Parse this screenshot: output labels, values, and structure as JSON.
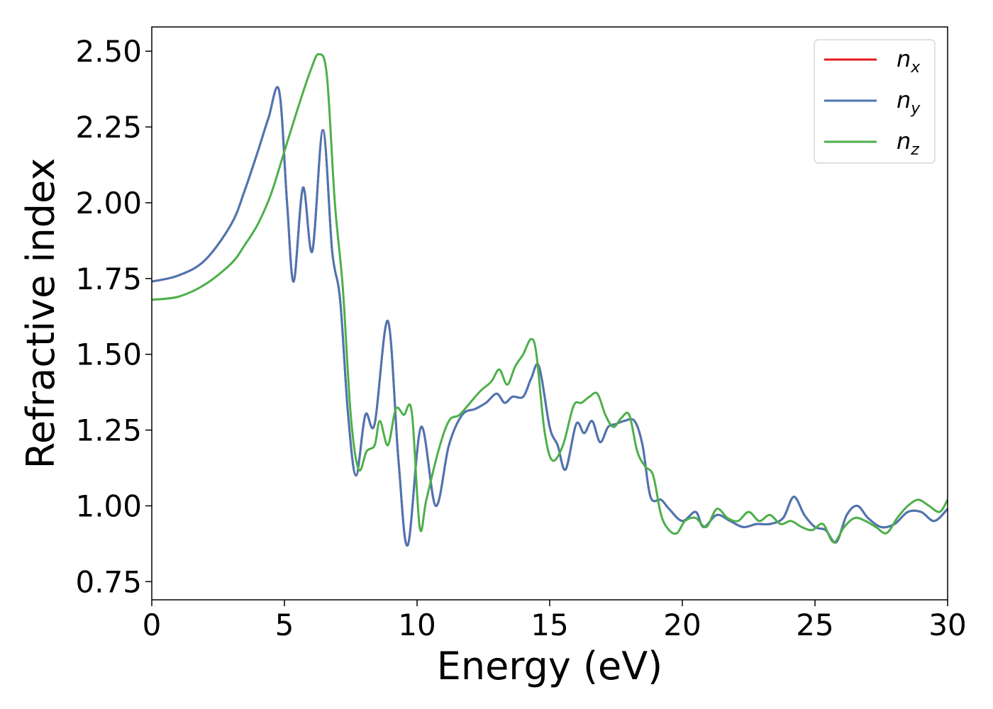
{
  "chart_data": {
    "type": "line",
    "xlabel": "Energy (eV)",
    "ylabel": "Refractive index",
    "xlim": [
      0,
      30
    ],
    "ylim": [
      0.69,
      2.58
    ],
    "xticks": [
      "0",
      "5",
      "10",
      "15",
      "20",
      "25",
      "30"
    ],
    "yticks": [
      "0.75",
      "1.00",
      "1.25",
      "1.50",
      "1.75",
      "2.00",
      "2.25",
      "2.50"
    ],
    "grid": false,
    "legend_position": "top-right",
    "series": [
      {
        "name": "n_x",
        "label_base": "n",
        "label_sub": "x",
        "color": "#e41a1c",
        "x": [
          0,
          1,
          2,
          3,
          3.5,
          4,
          4.4,
          4.8,
          5.1,
          5.35,
          5.7,
          6.05,
          6.45,
          6.8,
          7.1,
          7.4,
          7.7,
          8.05,
          8.4,
          8.9,
          9.3,
          9.65,
          10.15,
          10.7,
          11.2,
          11.7,
          12.2,
          12.6,
          13.0,
          13.3,
          13.6,
          14.0,
          14.3,
          14.6,
          15.0,
          15.3,
          15.6,
          16.0,
          16.3,
          16.6,
          16.9,
          17.2,
          17.5,
          17.8,
          18.2,
          18.5,
          18.8,
          19.2,
          19.5,
          20.0,
          20.5,
          20.8,
          21.3,
          21.8,
          22.3,
          22.8,
          23.3,
          23.8,
          24.2,
          24.6,
          25.0,
          25.4,
          25.8,
          26.2,
          26.6,
          27.0,
          27.5,
          28.0,
          28.5,
          29.0,
          29.5,
          30.0
        ],
        "y": [
          1.74,
          1.76,
          1.81,
          1.93,
          2.04,
          2.17,
          2.28,
          2.37,
          2.0,
          1.74,
          2.05,
          1.84,
          2.24,
          1.84,
          1.68,
          1.3,
          1.1,
          1.3,
          1.27,
          1.61,
          1.15,
          0.87,
          1.26,
          1.0,
          1.2,
          1.3,
          1.32,
          1.34,
          1.37,
          1.34,
          1.36,
          1.36,
          1.42,
          1.46,
          1.26,
          1.2,
          1.12,
          1.27,
          1.24,
          1.28,
          1.21,
          1.26,
          1.27,
          1.28,
          1.28,
          1.2,
          1.03,
          1.02,
          0.99,
          0.95,
          0.98,
          0.93,
          0.97,
          0.95,
          0.93,
          0.94,
          0.94,
          0.96,
          1.03,
          0.97,
          0.93,
          0.92,
          0.88,
          0.97,
          1.0,
          0.96,
          0.93,
          0.94,
          0.98,
          0.98,
          0.95,
          0.99
        ]
      },
      {
        "name": "n_y",
        "label_base": "n",
        "label_sub": "y",
        "color": "#4a76b3",
        "x": [
          0,
          1,
          2,
          3,
          3.5,
          4,
          4.4,
          4.8,
          5.1,
          5.35,
          5.7,
          6.05,
          6.45,
          6.8,
          7.1,
          7.4,
          7.7,
          8.05,
          8.4,
          8.9,
          9.3,
          9.65,
          10.15,
          10.7,
          11.2,
          11.7,
          12.2,
          12.6,
          13.0,
          13.3,
          13.6,
          14.0,
          14.3,
          14.6,
          15.0,
          15.3,
          15.6,
          16.0,
          16.3,
          16.6,
          16.9,
          17.2,
          17.5,
          17.8,
          18.2,
          18.5,
          18.8,
          19.2,
          19.5,
          20.0,
          20.5,
          20.8,
          21.3,
          21.8,
          22.3,
          22.8,
          23.3,
          23.8,
          24.2,
          24.6,
          25.0,
          25.4,
          25.8,
          26.2,
          26.6,
          27.0,
          27.5,
          28.0,
          28.5,
          29.0,
          29.5,
          30.0
        ],
        "y": [
          1.74,
          1.76,
          1.81,
          1.93,
          2.04,
          2.17,
          2.28,
          2.37,
          2.0,
          1.74,
          2.05,
          1.84,
          2.24,
          1.84,
          1.68,
          1.3,
          1.1,
          1.3,
          1.27,
          1.61,
          1.15,
          0.87,
          1.26,
          1.0,
          1.2,
          1.3,
          1.32,
          1.34,
          1.37,
          1.34,
          1.36,
          1.36,
          1.42,
          1.46,
          1.26,
          1.2,
          1.12,
          1.27,
          1.24,
          1.28,
          1.21,
          1.26,
          1.27,
          1.28,
          1.28,
          1.2,
          1.03,
          1.02,
          0.99,
          0.95,
          0.98,
          0.93,
          0.97,
          0.95,
          0.93,
          0.94,
          0.94,
          0.96,
          1.03,
          0.97,
          0.93,
          0.92,
          0.88,
          0.97,
          1.0,
          0.96,
          0.93,
          0.94,
          0.98,
          0.98,
          0.95,
          0.99
        ]
      },
      {
        "name": "n_z",
        "label_base": "n",
        "label_sub": "z",
        "color": "#4daf4a",
        "x": [
          0,
          1,
          2,
          3,
          3.5,
          4,
          4.5,
          5.0,
          5.5,
          6.0,
          6.3,
          6.6,
          6.9,
          7.2,
          7.5,
          7.8,
          8.1,
          8.4,
          8.6,
          8.9,
          9.2,
          9.5,
          9.8,
          10.1,
          10.35,
          10.8,
          11.2,
          11.6,
          12.0,
          12.4,
          12.8,
          13.1,
          13.4,
          13.7,
          14.0,
          14.3,
          14.5,
          14.8,
          15.1,
          15.5,
          15.9,
          16.2,
          16.5,
          16.8,
          17.1,
          17.4,
          17.7,
          18.0,
          18.3,
          18.6,
          18.9,
          19.2,
          19.5,
          19.8,
          20.1,
          20.5,
          20.9,
          21.3,
          21.7,
          22.1,
          22.5,
          22.9,
          23.3,
          23.7,
          24.1,
          24.5,
          24.9,
          25.3,
          25.7,
          26.1,
          26.5,
          26.9,
          27.3,
          27.7,
          28.1,
          28.5,
          28.9,
          29.3,
          29.7,
          30.0
        ],
        "y": [
          1.68,
          1.69,
          1.73,
          1.8,
          1.86,
          1.93,
          2.03,
          2.17,
          2.31,
          2.44,
          2.49,
          2.42,
          2.0,
          1.72,
          1.3,
          1.12,
          1.18,
          1.2,
          1.28,
          1.2,
          1.32,
          1.3,
          1.31,
          0.93,
          1.02,
          1.18,
          1.28,
          1.3,
          1.34,
          1.38,
          1.41,
          1.45,
          1.4,
          1.46,
          1.5,
          1.55,
          1.5,
          1.25,
          1.15,
          1.2,
          1.33,
          1.34,
          1.36,
          1.37,
          1.3,
          1.26,
          1.29,
          1.3,
          1.18,
          1.13,
          1.1,
          0.97,
          0.92,
          0.91,
          0.95,
          0.96,
          0.93,
          0.99,
          0.96,
          0.95,
          0.98,
          0.95,
          0.97,
          0.94,
          0.95,
          0.93,
          0.92,
          0.94,
          0.88,
          0.93,
          0.96,
          0.95,
          0.93,
          0.91,
          0.96,
          1.0,
          1.02,
          1.0,
          0.98,
          1.02
        ]
      }
    ]
  }
}
